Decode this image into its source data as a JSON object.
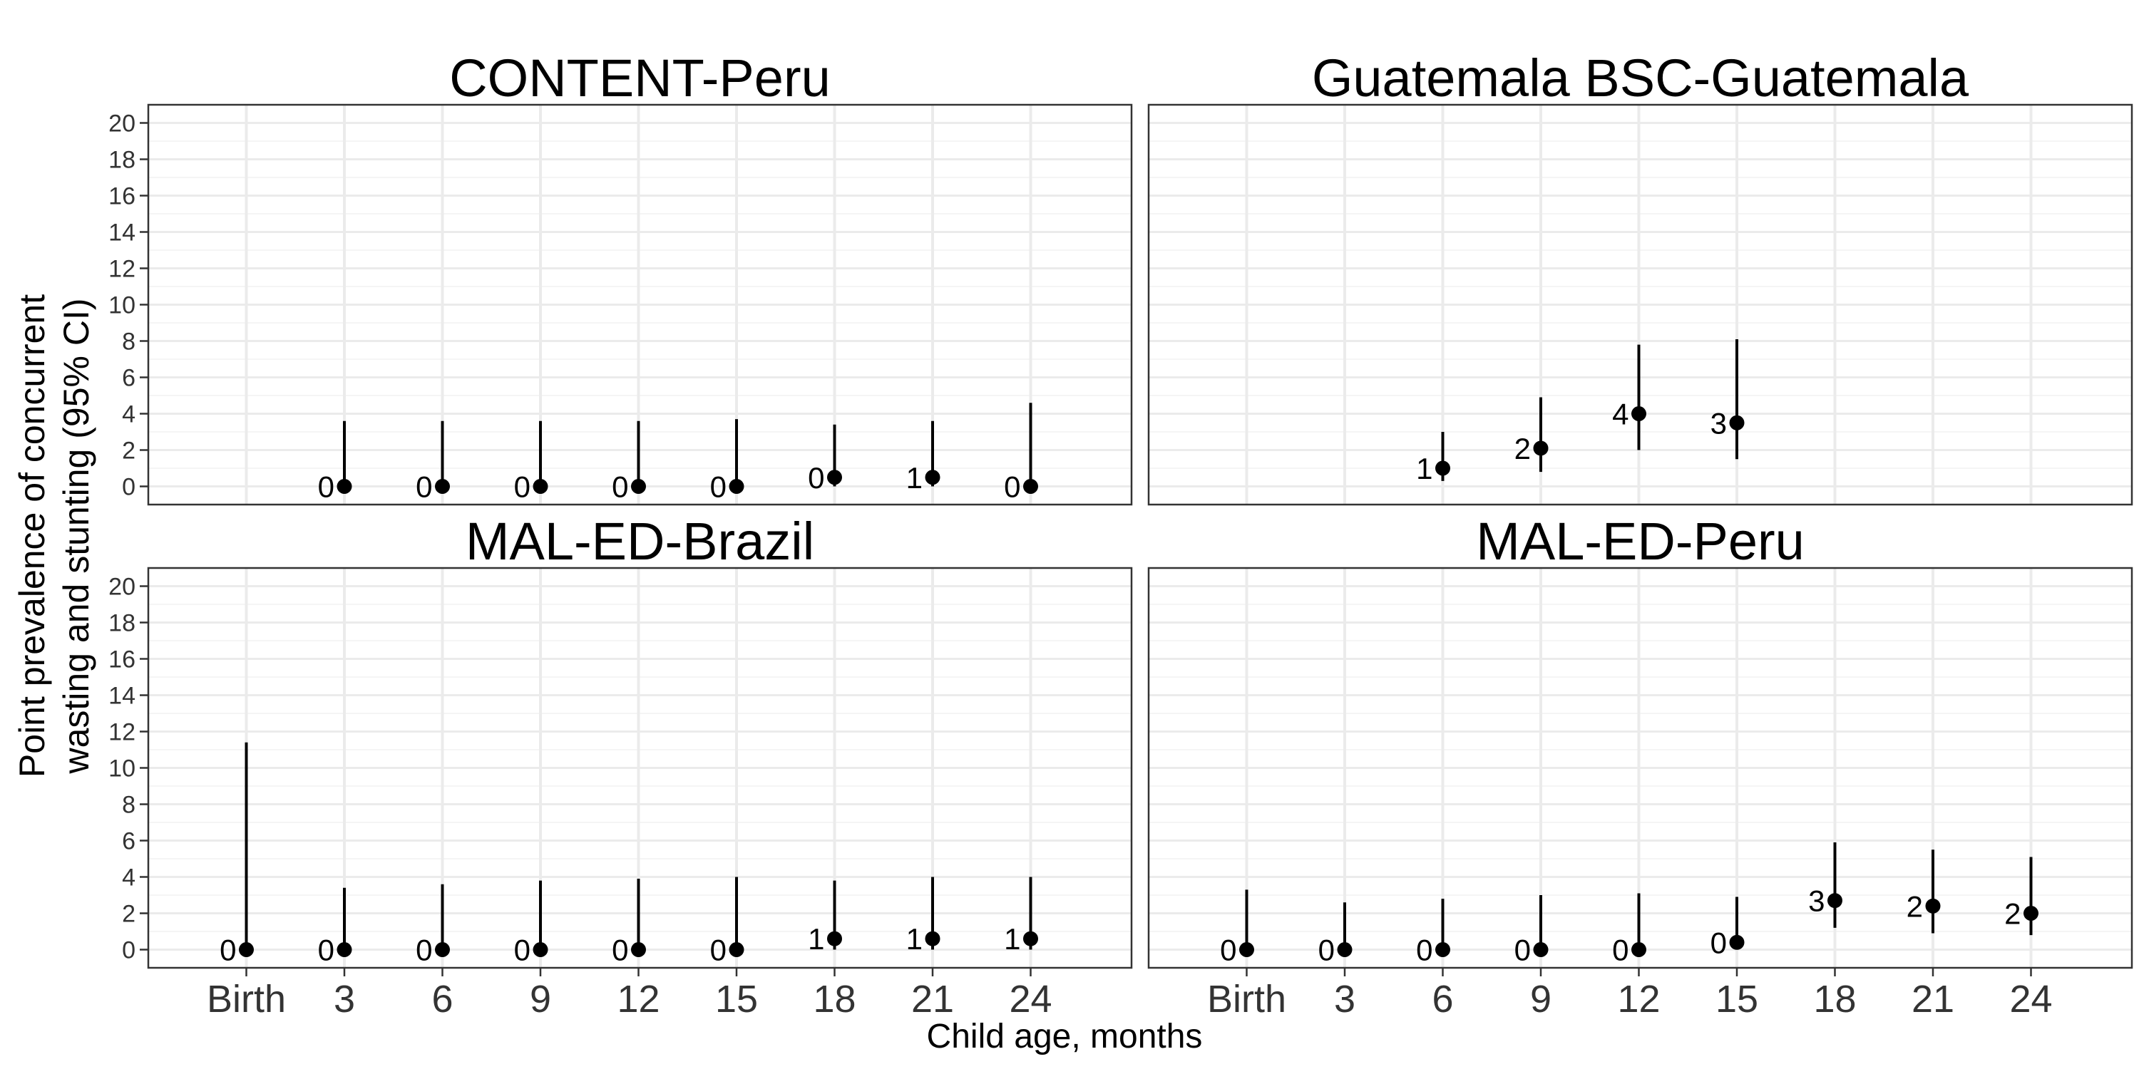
{
  "chart_data": {
    "type": "scatter",
    "subtype": "point-with-error-bars",
    "xlabel": "Child age, months",
    "ylabel_lines": [
      "Point prevalence of concurrent",
      "wasting and stunting (95% CI)"
    ],
    "categories": [
      "Birth",
      "3",
      "6",
      "9",
      "12",
      "15",
      "18",
      "21",
      "24"
    ],
    "y_ticks": [
      "0",
      "2",
      "4",
      "6",
      "8",
      "10",
      "12",
      "14",
      "16",
      "18",
      "20"
    ],
    "ylim": [
      -1,
      21
    ],
    "grid": true,
    "panels": [
      {
        "title": "CONTENT-Peru",
        "points": [
          {
            "x": "3",
            "y": 0,
            "lo": 0,
            "hi": 3.6,
            "label": "0"
          },
          {
            "x": "6",
            "y": 0,
            "lo": 0,
            "hi": 3.6,
            "label": "0"
          },
          {
            "x": "9",
            "y": 0,
            "lo": 0,
            "hi": 3.6,
            "label": "0"
          },
          {
            "x": "12",
            "y": 0,
            "lo": 0,
            "hi": 3.6,
            "label": "0"
          },
          {
            "x": "15",
            "y": 0,
            "lo": 0,
            "hi": 3.7,
            "label": "0"
          },
          {
            "x": "18",
            "y": 0.5,
            "lo": 0,
            "hi": 3.4,
            "label": "0"
          },
          {
            "x": "21",
            "y": 0.5,
            "lo": 0,
            "hi": 3.6,
            "label": "1"
          },
          {
            "x": "24",
            "y": 0,
            "lo": 0,
            "hi": 4.6,
            "label": "0"
          }
        ]
      },
      {
        "title": "Guatemala BSC-Guatemala",
        "points": [
          {
            "x": "6",
            "y": 1.0,
            "lo": 0.3,
            "hi": 3.0,
            "label": "1"
          },
          {
            "x": "9",
            "y": 2.1,
            "lo": 0.8,
            "hi": 4.9,
            "label": "2"
          },
          {
            "x": "12",
            "y": 4.0,
            "lo": 2.0,
            "hi": 7.8,
            "label": "4"
          },
          {
            "x": "15",
            "y": 3.5,
            "lo": 1.5,
            "hi": 8.1,
            "label": "3"
          }
        ]
      },
      {
        "title": "MAL-ED-Brazil",
        "points": [
          {
            "x": "Birth",
            "y": 0,
            "lo": 0,
            "hi": 11.4,
            "label": "0"
          },
          {
            "x": "3",
            "y": 0,
            "lo": 0,
            "hi": 3.4,
            "label": "0"
          },
          {
            "x": "6",
            "y": 0,
            "lo": 0,
            "hi": 3.6,
            "label": "0"
          },
          {
            "x": "9",
            "y": 0,
            "lo": 0,
            "hi": 3.8,
            "label": "0"
          },
          {
            "x": "12",
            "y": 0,
            "lo": 0,
            "hi": 3.9,
            "label": "0"
          },
          {
            "x": "15",
            "y": 0,
            "lo": 0,
            "hi": 4.0,
            "label": "0"
          },
          {
            "x": "18",
            "y": 0.6,
            "lo": 0,
            "hi": 3.8,
            "label": "1"
          },
          {
            "x": "21",
            "y": 0.6,
            "lo": 0,
            "hi": 4.0,
            "label": "1"
          },
          {
            "x": "24",
            "y": 0.6,
            "lo": 0,
            "hi": 4.0,
            "label": "1"
          }
        ]
      },
      {
        "title": "MAL-ED-Peru",
        "points": [
          {
            "x": "Birth",
            "y": 0,
            "lo": 0,
            "hi": 3.3,
            "label": "0"
          },
          {
            "x": "3",
            "y": 0,
            "lo": 0,
            "hi": 2.6,
            "label": "0"
          },
          {
            "x": "6",
            "y": 0,
            "lo": 0,
            "hi": 2.8,
            "label": "0"
          },
          {
            "x": "9",
            "y": 0,
            "lo": 0,
            "hi": 3.0,
            "label": "0"
          },
          {
            "x": "12",
            "y": 0,
            "lo": 0,
            "hi": 3.1,
            "label": "0"
          },
          {
            "x": "15",
            "y": 0.4,
            "lo": 0,
            "hi": 2.9,
            "label": "0"
          },
          {
            "x": "18",
            "y": 2.7,
            "lo": 1.2,
            "hi": 5.9,
            "label": "3"
          },
          {
            "x": "21",
            "y": 2.4,
            "lo": 0.9,
            "hi": 5.5,
            "label": "2"
          },
          {
            "x": "24",
            "y": 2.0,
            "lo": 0.8,
            "hi": 5.1,
            "label": "2"
          }
        ]
      }
    ]
  }
}
